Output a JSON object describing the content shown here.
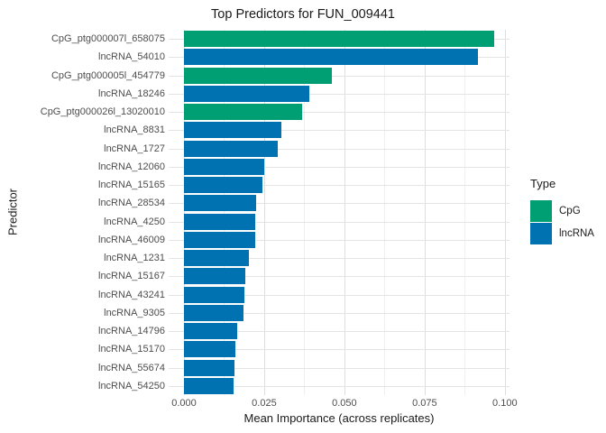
{
  "title": "Top Predictors for FUN_009441",
  "axes": {
    "x_label": "Mean Importance (across replicates)",
    "y_label": "Predictor"
  },
  "legend": {
    "title": "Type",
    "items": [
      {
        "label": "CpG",
        "color": "#009E73"
      },
      {
        "label": "lncRNA",
        "color": "#0072B2"
      }
    ]
  },
  "colors": {
    "cpg": "#009E73",
    "lncrna": "#0072B2",
    "grid_major": "#dedede",
    "grid_minor": "#efefef",
    "tick_text": "#4d4d4d"
  },
  "chart_data": {
    "type": "bar",
    "orientation": "horizontal",
    "title": "Top Predictors for FUN_009441",
    "xlabel": "Mean Importance (across replicates)",
    "ylabel": "Predictor",
    "legend_title": "Type",
    "legend_position": "right",
    "grid": "major+minor",
    "xlim": [
      0,
      0.1015
    ],
    "x_major_ticks": [
      0,
      0.025,
      0.05,
      0.075,
      0.1
    ],
    "x_minor_ticks": [
      0.0125,
      0.0375,
      0.0625,
      0.0875
    ],
    "x_tick_labels": [
      "0.000",
      "0.025",
      "0.050",
      "0.075",
      "0.100"
    ],
    "categories": [
      "CpG_ptg000007l_658075",
      "lncRNA_54010",
      "CpG_ptg000005l_454779",
      "lncRNA_18246",
      "CpG_ptg000026l_13020010",
      "lncRNA_8831",
      "lncRNA_1727",
      "lncRNA_12060",
      "lncRNA_15165",
      "lncRNA_28534",
      "lncRNA_4250",
      "lncRNA_46009",
      "lncRNA_1231",
      "lncRNA_15167",
      "lncRNA_43241",
      "lncRNA_9305",
      "lncRNA_14796",
      "lncRNA_15170",
      "lncRNA_55674",
      "lncRNA_54250"
    ],
    "values": [
      0.0967,
      0.0916,
      0.0462,
      0.0391,
      0.0368,
      0.0304,
      0.0291,
      0.0249,
      0.0244,
      0.0224,
      0.0223,
      0.0222,
      0.0201,
      0.019,
      0.0187,
      0.0185,
      0.0165,
      0.016,
      0.0158,
      0.0154
    ],
    "types": [
      "CpG",
      "lncRNA",
      "CpG",
      "lncRNA",
      "CpG",
      "lncRNA",
      "lncRNA",
      "lncRNA",
      "lncRNA",
      "lncRNA",
      "lncRNA",
      "lncRNA",
      "lncRNA",
      "lncRNA",
      "lncRNA",
      "lncRNA",
      "lncRNA",
      "lncRNA",
      "lncRNA",
      "lncRNA"
    ]
  }
}
